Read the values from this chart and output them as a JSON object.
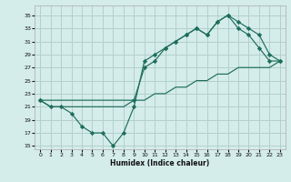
{
  "xlabel": "Humidex (Indice chaleur)",
  "bg_color": "#d4ecea",
  "grid_color": "#b2d0cc",
  "line_color": "#1e6e5a",
  "xlim": [
    -0.5,
    23.5
  ],
  "ylim": [
    14.5,
    36.5
  ],
  "xticks": [
    0,
    1,
    2,
    3,
    4,
    5,
    6,
    7,
    8,
    9,
    10,
    11,
    12,
    13,
    14,
    15,
    16,
    17,
    18,
    19,
    20,
    21,
    22,
    23
  ],
  "yticks": [
    15,
    17,
    19,
    21,
    23,
    25,
    27,
    29,
    31,
    33,
    35
  ],
  "line1_x": [
    0,
    1,
    2,
    3,
    4,
    5,
    6,
    7,
    8,
    9,
    10,
    11,
    12,
    13,
    14,
    15,
    16,
    17,
    18,
    19,
    20,
    21,
    22,
    23
  ],
  "line1_y": [
    22,
    21,
    21,
    20,
    18,
    17,
    17,
    15,
    17,
    21,
    28,
    29,
    30,
    31,
    32,
    33,
    32,
    34,
    35,
    34,
    33,
    32,
    29,
    28
  ],
  "line2_x": [
    0,
    9,
    10,
    11,
    12,
    13,
    14,
    15,
    16,
    17,
    18,
    19,
    20,
    21,
    22,
    23
  ],
  "line2_y": [
    22,
    22,
    27,
    28,
    30,
    31,
    32,
    33,
    32,
    34,
    35,
    33,
    32,
    30,
    28,
    28
  ],
  "line3_x": [
    0,
    1,
    2,
    3,
    4,
    5,
    6,
    7,
    8,
    9,
    10,
    11,
    12,
    13,
    14,
    15,
    16,
    17,
    18,
    19,
    20,
    21,
    22,
    23
  ],
  "line3_y": [
    22,
    21,
    21,
    21,
    21,
    21,
    21,
    21,
    21,
    22,
    22,
    23,
    23,
    24,
    24,
    25,
    25,
    26,
    26,
    27,
    27,
    27,
    27,
    28
  ]
}
